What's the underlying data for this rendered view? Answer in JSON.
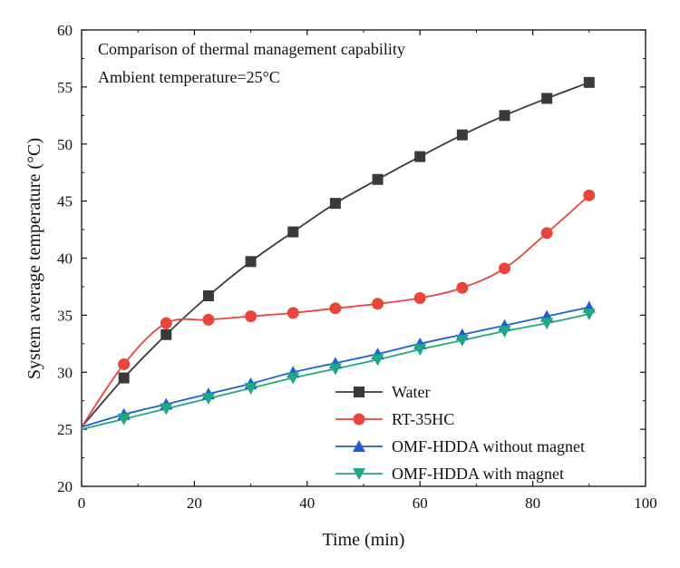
{
  "chart_data": {
    "type": "line",
    "annotations": [
      "Comparison of thermal management capability",
      "Ambient temperature=25°C"
    ],
    "xlabel": "Time (min)",
    "ylabel": "System average temperature (°C)",
    "xlim": [
      0,
      100
    ],
    "ylim": [
      20,
      60
    ],
    "xticks": [
      0,
      20,
      40,
      60,
      80,
      100
    ],
    "yticks": [
      20,
      25,
      30,
      35,
      40,
      45,
      50,
      55,
      60
    ],
    "legend_position": "bottom-right",
    "series": [
      {
        "name": "Water",
        "color": "#3a3a3a",
        "marker": "square",
        "x": [
          0,
          7.5,
          15,
          22.5,
          30,
          37.5,
          45,
          52.5,
          60,
          67.5,
          75,
          82.5,
          90
        ],
        "y": [
          25.2,
          29.5,
          33.3,
          36.7,
          39.7,
          42.3,
          44.8,
          46.9,
          48.9,
          50.8,
          52.5,
          54.0,
          55.4
        ]
      },
      {
        "name": "RT-35HC",
        "color": "#e8453c",
        "marker": "circle",
        "x": [
          0,
          7.5,
          15,
          22.5,
          30,
          37.5,
          45,
          52.5,
          60,
          67.5,
          75,
          82.5,
          90
        ],
        "y": [
          25.2,
          30.7,
          34.3,
          34.6,
          34.9,
          35.2,
          35.6,
          36.0,
          36.5,
          37.4,
          39.1,
          42.2,
          45.5
        ]
      },
      {
        "name": "OMF-HDDA without magnet",
        "color": "#1f5fd6",
        "marker": "triangle-up",
        "x": [
          0,
          7.5,
          15,
          22.5,
          30,
          37.5,
          45,
          52.5,
          60,
          67.5,
          75,
          82.5,
          90
        ],
        "y": [
          25.2,
          26.3,
          27.2,
          28.1,
          29.0,
          30.0,
          30.8,
          31.6,
          32.5,
          33.3,
          34.1,
          34.9,
          35.7
        ]
      },
      {
        "name": "OMF-HDDA with magnet",
        "color": "#1fa882",
        "marker": "triangle-down",
        "x": [
          0,
          7.5,
          15,
          22.5,
          30,
          37.5,
          45,
          52.5,
          60,
          67.5,
          75,
          82.5,
          90
        ],
        "y": [
          25.0,
          25.9,
          26.8,
          27.7,
          28.6,
          29.5,
          30.3,
          31.1,
          32.0,
          32.8,
          33.6,
          34.3,
          35.1
        ]
      }
    ]
  }
}
